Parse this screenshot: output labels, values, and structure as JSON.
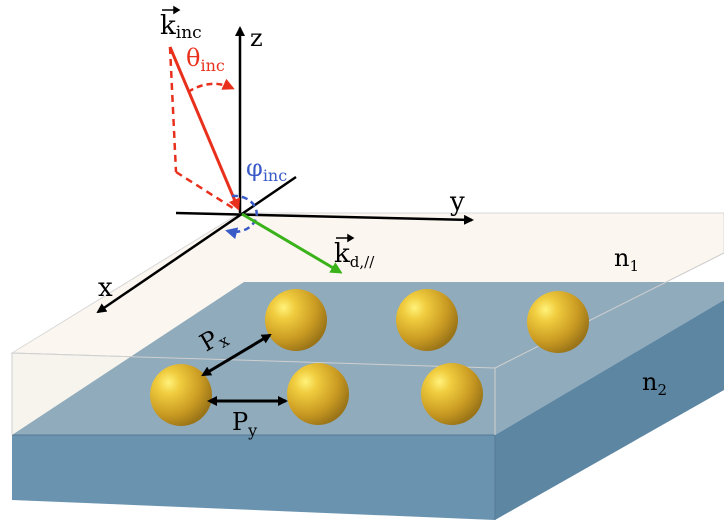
{
  "labels": {
    "k_inc": "k",
    "k_inc_sub": "inc",
    "theta": "θ",
    "theta_sub": "inc",
    "phi": "φ",
    "phi_sub": "inc",
    "z": "z",
    "y": "y",
    "x": "x",
    "k_d": "k",
    "k_d_sub": "d,//",
    "n1": "n",
    "n1_sub": "1",
    "n2": "n",
    "n2_sub": "2",
    "px": "P",
    "px_sub": "x",
    "py": "P",
    "py_sub": "y"
  },
  "colors": {
    "incident": "#e8301c",
    "azimuth": "#3a5bc7",
    "diffracted": "#3ab21a",
    "substrate_top": "#8aa7b8",
    "substrate_front": "#6a93b0",
    "particle": "#c9a030"
  }
}
